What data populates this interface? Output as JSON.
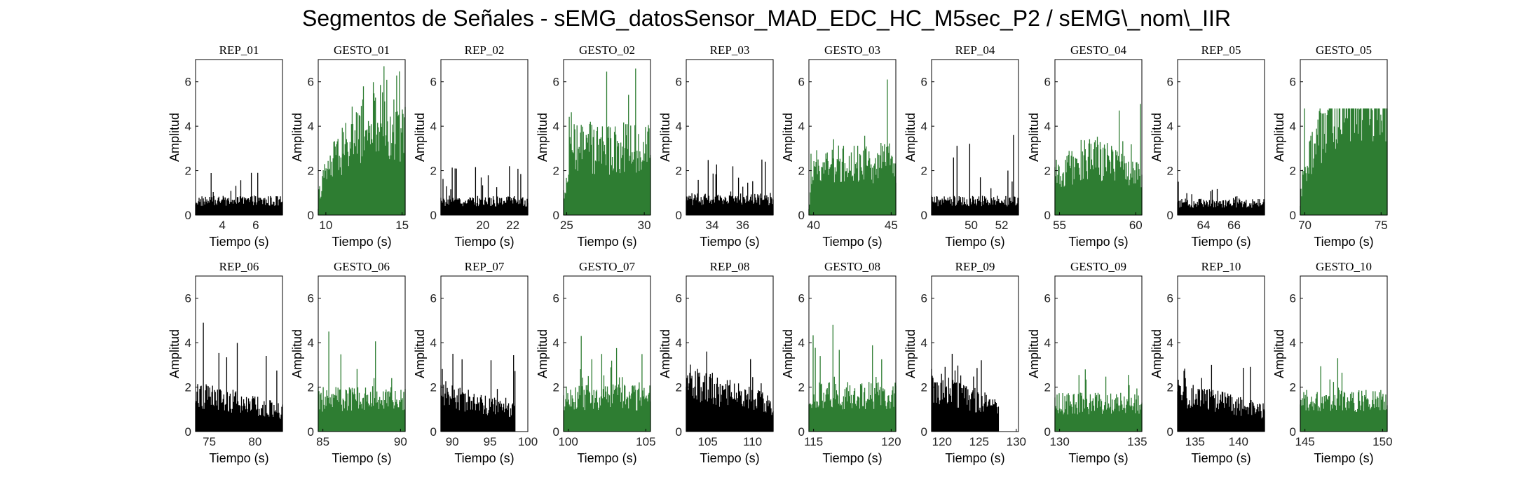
{
  "figure": {
    "title": "Segmentos de Señales - sEMG_datosSensor_MAD_EDC_HC_M5sec_P2 / sEMG\\_nom\\_IIR",
    "colors": {
      "rep": "#000000",
      "gesto": "#2e7d32",
      "axis": "#000000",
      "background": "#ffffff"
    }
  },
  "chart_data": [
    {
      "type": "bar",
      "title": "REP_01",
      "series_type": "rep",
      "xlabel": "Tiempo (s)",
      "ylabel": "Amplitud",
      "xlim": [
        2.4,
        7.6
      ],
      "ylim": [
        0,
        7
      ],
      "xticks": [
        4,
        6
      ],
      "yticks": [
        0,
        2,
        4,
        6
      ],
      "signal": {
        "x_start": 2.4,
        "x_end": 7.6,
        "baseline": 0.7,
        "peak": 1.9
      }
    },
    {
      "type": "bar",
      "title": "GESTO_01",
      "series_type": "gesto",
      "xlabel": "Tiempo (s)",
      "ylabel": "Amplitud",
      "xlim": [
        9.5,
        15.2
      ],
      "ylim": [
        0,
        7
      ],
      "xticks": [
        10,
        15
      ],
      "yticks": [
        0,
        2,
        4,
        6
      ],
      "signal": {
        "x_start": 9.5,
        "x_end": 15.2,
        "baseline": 0.8,
        "peak": 6.7,
        "trend": "rise",
        "plateau": 4.3
      }
    },
    {
      "type": "bar",
      "title": "REP_02",
      "series_type": "rep",
      "xlabel": "Tiempo (s)",
      "ylabel": "Amplitud",
      "xlim": [
        17.2,
        23.0
      ],
      "ylim": [
        0,
        7
      ],
      "xticks": [
        20,
        22
      ],
      "yticks": [
        0,
        2,
        4,
        6
      ],
      "signal": {
        "x_start": 17.2,
        "x_end": 23.0,
        "baseline": 0.7,
        "peak": 2.2
      }
    },
    {
      "type": "bar",
      "title": "GESTO_02",
      "series_type": "gesto",
      "xlabel": "Tiempo (s)",
      "ylabel": "Amplitud",
      "xlim": [
        24.8,
        30.4
      ],
      "ylim": [
        0,
        7
      ],
      "xticks": [
        25,
        30
      ],
      "yticks": [
        0,
        2,
        4,
        6
      ],
      "signal": {
        "x_start": 24.8,
        "x_end": 30.4,
        "baseline": 3.3,
        "peak": 6.6,
        "trend": "fast-rise"
      }
    },
    {
      "type": "bar",
      "title": "REP_03",
      "series_type": "rep",
      "xlabel": "Tiempo (s)",
      "ylabel": "Amplitud",
      "xlim": [
        32.3,
        38.0
      ],
      "ylim": [
        0,
        7
      ],
      "xticks": [
        34,
        36
      ],
      "yticks": [
        0,
        2,
        4,
        6
      ],
      "signal": {
        "x_start": 32.3,
        "x_end": 38.0,
        "baseline": 0.8,
        "peak": 2.5
      }
    },
    {
      "type": "bar",
      "title": "GESTO_03",
      "series_type": "gesto",
      "xlabel": "Tiempo (s)",
      "ylabel": "Amplitud",
      "xlim": [
        39.7,
        45.3
      ],
      "ylim": [
        0,
        7
      ],
      "xticks": [
        40,
        45
      ],
      "yticks": [
        0,
        2,
        4,
        6
      ],
      "signal": {
        "x_start": 39.7,
        "x_end": 45.3,
        "baseline": 2.6,
        "peak": 6.1,
        "trend": "fast-rise"
      }
    },
    {
      "type": "bar",
      "title": "REP_04",
      "series_type": "rep",
      "xlabel": "Tiempo (s)",
      "ylabel": "Amplitud",
      "xlim": [
        47.4,
        53.1
      ],
      "ylim": [
        0,
        7
      ],
      "xticks": [
        50,
        52
      ],
      "yticks": [
        0,
        2,
        4,
        6
      ],
      "signal": {
        "x_start": 47.4,
        "x_end": 53.1,
        "baseline": 0.7,
        "peak": 3.6
      }
    },
    {
      "type": "bar",
      "title": "GESTO_04",
      "series_type": "gesto",
      "xlabel": "Tiempo (s)",
      "ylabel": "Amplitud",
      "xlim": [
        54.7,
        60.4
      ],
      "ylim": [
        0,
        7
      ],
      "xticks": [
        55,
        60
      ],
      "yticks": [
        0,
        2,
        4,
        6
      ],
      "signal": {
        "x_start": 54.7,
        "x_end": 60.4,
        "baseline": 2.3,
        "peak": 5.0,
        "trend": "bump"
      }
    },
    {
      "type": "bar",
      "title": "REP_05",
      "series_type": "rep",
      "xlabel": "Tiempo (s)",
      "ylabel": "Amplitud",
      "xlim": [
        62.3,
        68.0
      ],
      "ylim": [
        0,
        7
      ],
      "xticks": [
        64,
        66
      ],
      "yticks": [
        0,
        2,
        4,
        6
      ],
      "signal": {
        "x_start": 62.3,
        "x_end": 68.0,
        "baseline": 0.6,
        "peak": 1.5
      }
    },
    {
      "type": "bar",
      "title": "GESTO_05",
      "series_type": "gesto",
      "xlabel": "Tiempo (s)",
      "ylabel": "Amplitud",
      "xlim": [
        69.7,
        75.4
      ],
      "ylim": [
        0,
        7
      ],
      "xticks": [
        70,
        75
      ],
      "yticks": [
        0,
        2,
        4,
        6
      ],
      "signal": {
        "x_start": 69.7,
        "x_end": 75.4,
        "baseline": 2.0,
        "peak": 4.8,
        "trend": "rise"
      }
    },
    {
      "type": "bar",
      "title": "REP_06",
      "series_type": "rep",
      "xlabel": "Tiempo (s)",
      "ylabel": "Amplitud",
      "xlim": [
        73.5,
        83.0
      ],
      "ylim": [
        0,
        7
      ],
      "xticks": [
        75,
        80
      ],
      "yticks": [
        0,
        2,
        4,
        6
      ],
      "signal": {
        "x_start": 73.5,
        "x_end": 83.0,
        "baseline": 1.0,
        "peak": 4.9,
        "trend": "decay"
      }
    },
    {
      "type": "bar",
      "title": "GESTO_06",
      "series_type": "gesto",
      "xlabel": "Tiempo (s)",
      "ylabel": "Amplitud",
      "xlim": [
        84.7,
        90.3
      ],
      "ylim": [
        0,
        7
      ],
      "xticks": [
        85,
        90
      ],
      "yticks": [
        0,
        2,
        4,
        6
      ],
      "signal": {
        "x_start": 84.7,
        "x_end": 90.3,
        "baseline": 1.6,
        "peak": 4.5
      }
    },
    {
      "type": "bar",
      "title": "REP_07",
      "series_type": "rep",
      "xlabel": "Tiempo (s)",
      "ylabel": "Amplitud",
      "xlim": [
        88.5,
        100.0
      ],
      "ylim": [
        0,
        7
      ],
      "xticks": [
        90,
        95,
        100
      ],
      "yticks": [
        0,
        2,
        4,
        6
      ],
      "signal": {
        "x_start": 88.5,
        "x_end": 98.3,
        "baseline": 1.0,
        "peak": 3.5,
        "trend": "decay"
      }
    },
    {
      "type": "bar",
      "title": "GESTO_07",
      "series_type": "gesto",
      "xlabel": "Tiempo (s)",
      "ylabel": "Amplitud",
      "xlim": [
        99.7,
        105.3
      ],
      "ylim": [
        0,
        7
      ],
      "xticks": [
        100,
        105
      ],
      "yticks": [
        0,
        2,
        4,
        6
      ],
      "signal": {
        "x_start": 99.7,
        "x_end": 105.3,
        "baseline": 1.7,
        "peak": 4.3
      }
    },
    {
      "type": "bar",
      "title": "REP_08",
      "series_type": "rep",
      "xlabel": "Tiempo (s)",
      "ylabel": "Amplitud",
      "xlim": [
        102.6,
        112.3
      ],
      "ylim": [
        0,
        7
      ],
      "xticks": [
        105,
        110
      ],
      "yticks": [
        0,
        2,
        4,
        6
      ],
      "signal": {
        "x_start": 102.6,
        "x_end": 112.3,
        "baseline": 1.3,
        "peak": 3.6,
        "trend": "decay"
      }
    },
    {
      "type": "bar",
      "title": "GESTO_08",
      "series_type": "gesto",
      "xlabel": "Tiempo (s)",
      "ylabel": "Amplitud",
      "xlim": [
        114.7,
        120.3
      ],
      "ylim": [
        0,
        7
      ],
      "xticks": [
        115,
        120
      ],
      "yticks": [
        0,
        2,
        4,
        6
      ],
      "signal": {
        "x_start": 114.7,
        "x_end": 120.3,
        "baseline": 1.8,
        "peak": 4.8
      }
    },
    {
      "type": "bar",
      "title": "REP_09",
      "series_type": "rep",
      "xlabel": "Tiempo (s)",
      "ylabel": "Amplitud",
      "xlim": [
        118.6,
        130.3
      ],
      "ylim": [
        0,
        7
      ],
      "xticks": [
        120,
        125,
        130
      ],
      "yticks": [
        0,
        2,
        4,
        6
      ],
      "signal": {
        "x_start": 118.6,
        "x_end": 127.6,
        "baseline": 1.2,
        "peak": 3.5,
        "trend": "decay"
      }
    },
    {
      "type": "bar",
      "title": "GESTO_09",
      "series_type": "gesto",
      "xlabel": "Tiempo (s)",
      "ylabel": "Amplitud",
      "xlim": [
        129.7,
        135.3
      ],
      "ylim": [
        0,
        7
      ],
      "xticks": [
        130,
        135
      ],
      "yticks": [
        0,
        2,
        4,
        6
      ],
      "signal": {
        "x_start": 129.7,
        "x_end": 135.3,
        "baseline": 1.4,
        "peak": 2.8
      }
    },
    {
      "type": "bar",
      "title": "REP_10",
      "series_type": "rep",
      "xlabel": "Tiempo (s)",
      "ylabel": "Amplitud",
      "xlim": [
        133.0,
        143.0
      ],
      "ylim": [
        0,
        7
      ],
      "xticks": [
        135,
        140
      ],
      "yticks": [
        0,
        2,
        4,
        6
      ],
      "signal": {
        "x_start": 133.0,
        "x_end": 143.0,
        "baseline": 1.0,
        "peak": 3.0,
        "trend": "decay"
      }
    },
    {
      "type": "bar",
      "title": "GESTO_10",
      "series_type": "gesto",
      "xlabel": "Tiempo (s)",
      "ylabel": "Amplitud",
      "xlim": [
        144.7,
        150.3
      ],
      "ylim": [
        0,
        7
      ],
      "xticks": [
        145,
        150
      ],
      "yticks": [
        0,
        2,
        4,
        6
      ],
      "signal": {
        "x_start": 144.7,
        "x_end": 150.3,
        "baseline": 1.5,
        "peak": 3.3
      }
    }
  ]
}
